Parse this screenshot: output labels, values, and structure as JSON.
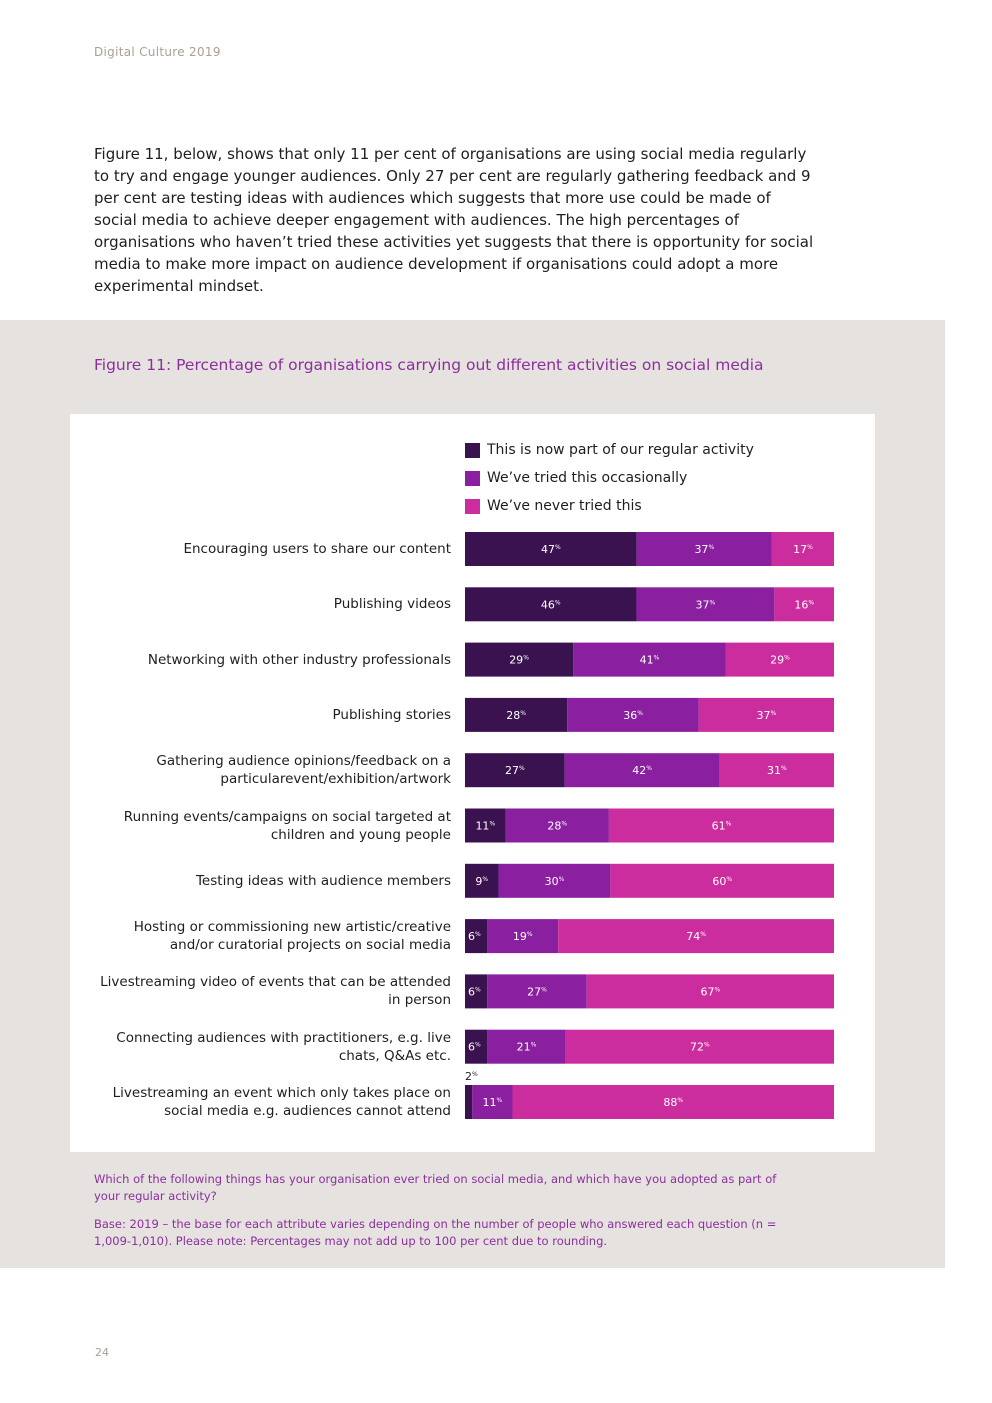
{
  "header": {
    "running_head": "Digital Culture 2019"
  },
  "intro_paragraph": "Figure 11, below, shows that only 11 per cent of organisations are using social media regularly to try and engage younger audiences. Only 27 per cent are regularly gathering feedback and 9 per cent are testing ideas with audiences which suggests that more use could be made of social media to achieve deeper engagement with audiences. The high percentages of organisations who haven’t tried these activities yet suggests that there is opportunity for social media to make more impact on audience development if organisations could adopt a more experimental mindset.",
  "figure": {
    "title": "Figure 11: Percentage of organisations carrying out different activities on social media"
  },
  "chart_data": {
    "type": "bar",
    "orientation": "horizontal",
    "stacked": true,
    "title": "Figure 11: Percentage of organisations carrying out different activities on social media",
    "value_suffix": "%",
    "legend_position": "top",
    "categories": [
      "Encouraging users to share our content",
      "Publishing videos",
      "Networking with other industry professionals",
      "Publishing stories",
      "Gathering audience opinions/feedback on a particularevent/exhibition/artwork",
      "Running events/campaigns on social targeted at children and young people",
      "Testing ideas with audience members",
      "Hosting or commissioning new artistic/creative and/or curatorial projects on social media",
      "Livestreaming video of events that can be attended in person",
      "Connecting audiences with practitioners, e.g. live chats, Q&As etc.",
      "Livestreaming an event which only takes place on social media e.g. audiences cannot attend"
    ],
    "series": [
      {
        "name": "This is now part of our regular activity",
        "color": "#3b1250",
        "values": [
          47,
          46,
          29,
          28,
          27,
          11,
          9,
          6,
          6,
          6,
          2
        ]
      },
      {
        "name": "We’ve tried this occasionally",
        "color": "#8a1fa0",
        "values": [
          37,
          37,
          41,
          36,
          42,
          28,
          30,
          19,
          27,
          21,
          11
        ]
      },
      {
        "name": "We’ve never tried this",
        "color": "#cc2d9e",
        "values": [
          17,
          16,
          29,
          37,
          31,
          61,
          60,
          74,
          67,
          72,
          88
        ]
      }
    ]
  },
  "notes": {
    "question": "Which of the following things has your organisation ever tried on social media, and which have you adopted as part of your regular activity?",
    "base": "Base: 2019 – the base for each attribute varies depending on the number of people who answered each question (n = 1,009-1,010). Please note: Percentages may not add up to 100 per cent due to rounding."
  },
  "footer": {
    "page_number": "24"
  }
}
